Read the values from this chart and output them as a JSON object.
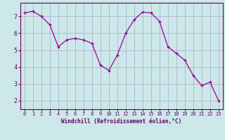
{
  "x": [
    0,
    1,
    2,
    3,
    4,
    5,
    6,
    7,
    8,
    9,
    10,
    11,
    12,
    13,
    14,
    15,
    16,
    17,
    18,
    19,
    20,
    21,
    22,
    23
  ],
  "y": [
    7.2,
    7.3,
    7.0,
    6.5,
    5.2,
    5.6,
    5.7,
    5.6,
    5.4,
    4.1,
    3.8,
    4.7,
    6.0,
    6.8,
    7.25,
    7.2,
    6.7,
    5.2,
    4.8,
    4.4,
    3.5,
    2.9,
    3.1,
    2.0
  ],
  "line_color": "#990099",
  "marker": "+",
  "bg_color": "#cce8e8",
  "grid_color": "#aaaacc",
  "xlabel": "Windchill (Refroidissement éolien,°C)",
  "xlabel_color": "#660066",
  "tick_color": "#660066",
  "ylim": [
    1.5,
    7.8
  ],
  "xlim": [
    -0.5,
    23.5
  ],
  "yticks": [
    2,
    3,
    4,
    5,
    6,
    7
  ],
  "xticks": [
    0,
    1,
    2,
    3,
    4,
    5,
    6,
    7,
    8,
    9,
    10,
    11,
    12,
    13,
    14,
    15,
    16,
    17,
    18,
    19,
    20,
    21,
    22,
    23
  ],
  "spine_color": "#660066"
}
